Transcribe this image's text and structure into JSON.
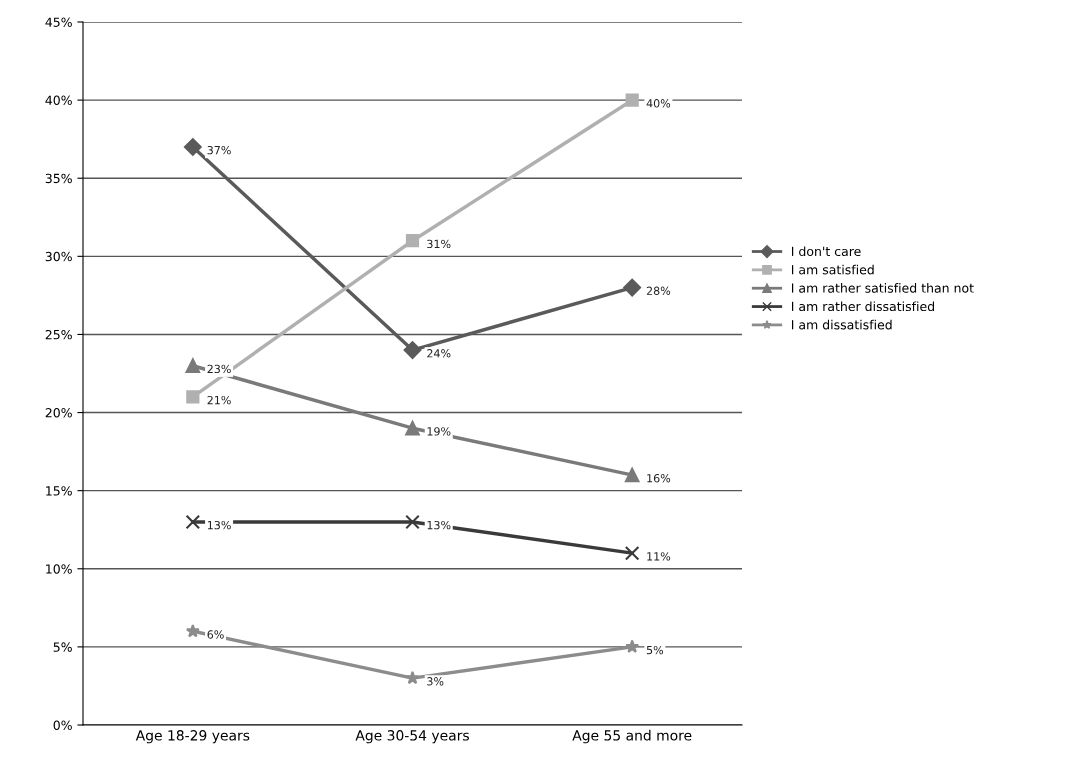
{
  "chart_data": {
    "type": "line",
    "categories": [
      "Age 18-29 years",
      "Age 30-54 years",
      "Age 55 and more"
    ],
    "series": [
      {
        "name": "I don't care",
        "color": "#5a5a5a",
        "marker": "diamond",
        "values": [
          37,
          24,
          28
        ],
        "value_labels": [
          "37%",
          "24%",
          "28%"
        ]
      },
      {
        "name": "I am satisfied",
        "color": "#b0b0b0",
        "marker": "square",
        "values": [
          21,
          31,
          40
        ],
        "value_labels": [
          "21%",
          "31%",
          "40%"
        ]
      },
      {
        "name": "I am rather satisfied than not",
        "color": "#7a7a7a",
        "marker": "triangle",
        "values": [
          23,
          19,
          16
        ],
        "value_labels": [
          "23%",
          "19%",
          "16%"
        ]
      },
      {
        "name": "I am rather dissatisfied",
        "color": "#3a3a3a",
        "marker": "cross",
        "values": [
          13,
          13,
          11
        ],
        "value_labels": [
          "13%",
          "13%",
          "11%"
        ]
      },
      {
        "name": "I am dissatisfied",
        "color": "#8c8c8c",
        "marker": "star",
        "values": [
          6,
          3,
          5
        ],
        "value_labels": [
          "6%",
          "3%",
          "5%"
        ]
      }
    ],
    "ylim": [
      0,
      45
    ],
    "yticks": [
      {
        "value": 0,
        "label": "0%"
      },
      {
        "value": 5,
        "label": "5%"
      },
      {
        "value": 10,
        "label": "10%"
      },
      {
        "value": 15,
        "label": "15%"
      },
      {
        "value": 20,
        "label": "20%"
      },
      {
        "value": 25,
        "label": "25%"
      },
      {
        "value": 30,
        "label": "30%"
      },
      {
        "value": 35,
        "label": "35%"
      },
      {
        "value": 40,
        "label": "40%"
      },
      {
        "value": 45,
        "label": "45%"
      }
    ],
    "grid": "y",
    "legend": "right",
    "line_style": "solid"
  }
}
